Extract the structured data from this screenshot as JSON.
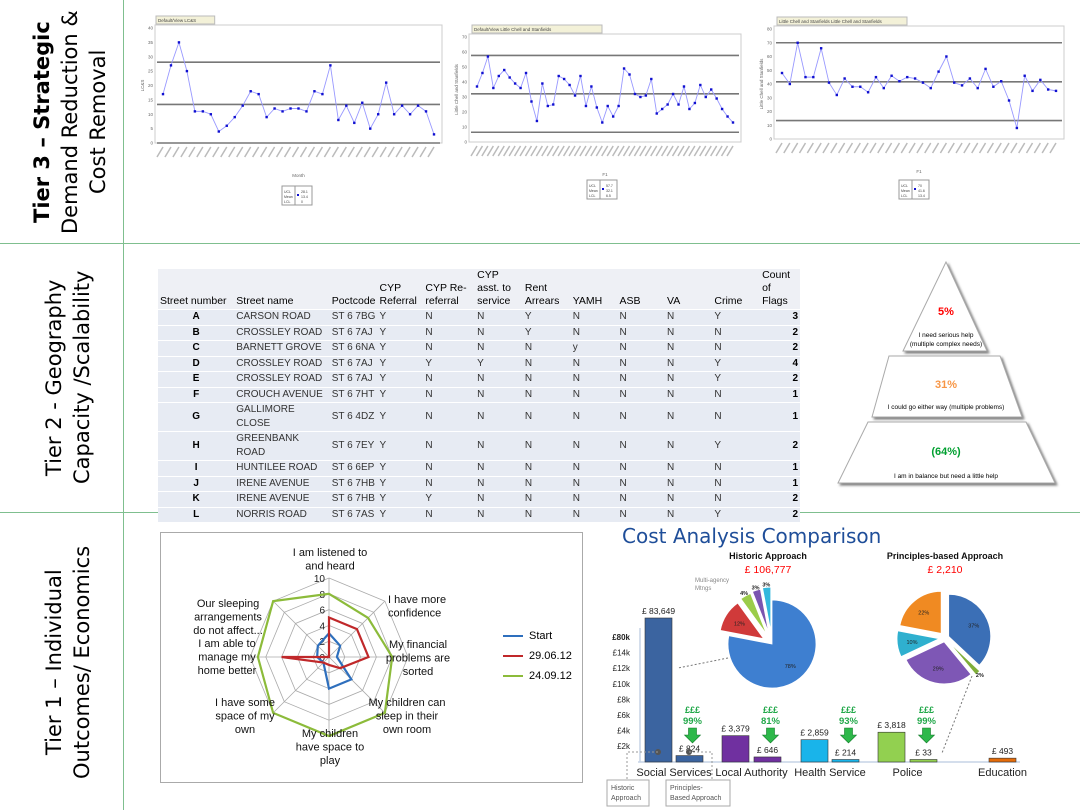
{
  "tiers": [
    {
      "lines": [
        "Tier  3 – Strategic",
        "Demand Reduction &",
        "Cost Removal"
      ]
    },
    {
      "lines": [
        "Tier  2 - Geography",
        "Capacity /Scalability"
      ]
    },
    {
      "lines": [
        "Tier  1 – Individual",
        "Outcomes/ Economics"
      ]
    }
  ],
  "control_charts": [
    {
      "tab": "Default/View LC&S",
      "xlabel": "Month",
      "ylabel": "LC&S",
      "ylim": [
        0,
        40
      ],
      "yticks": [
        0,
        5,
        10,
        15,
        20,
        25,
        30,
        35,
        40
      ],
      "values": [
        17,
        27,
        35,
        25,
        11,
        11,
        10,
        4,
        6,
        9,
        13,
        18,
        17,
        9,
        12,
        11,
        12,
        12,
        11,
        18,
        17,
        27,
        8,
        13,
        7,
        14,
        5,
        10,
        21,
        10,
        13,
        10,
        13,
        11,
        3
      ],
      "ucl": 28.1,
      "mean": 13.4,
      "lcl": 0,
      "legend": {
        "labels": [
          "UCL",
          "Mean",
          "LCL"
        ],
        "values": [
          "28.1",
          "13.4",
          "0"
        ]
      }
    },
    {
      "tab": "Default/View Little Chell and Stanfields",
      "xlabel": "F1",
      "ylabel": "Little Chell and Stanfields",
      "ylim": [
        0,
        70
      ],
      "yticks": [
        0,
        10,
        20,
        30,
        40,
        50,
        60,
        70
      ],
      "values": [
        37,
        46,
        57,
        36,
        44,
        48,
        43,
        39,
        36,
        46,
        27,
        14,
        39,
        24,
        25,
        44,
        42,
        38,
        31,
        44,
        24,
        37,
        23,
        13,
        24,
        17,
        24,
        49,
        45,
        32,
        30,
        31,
        42,
        19,
        22,
        25,
        32,
        25,
        37,
        22,
        26,
        38,
        30,
        35,
        29,
        22,
        17,
        13
      ],
      "ucl": 57.7,
      "mean": 32.1,
      "lcl": 6.5,
      "legend": {
        "labels": [
          "UCL",
          "Mean",
          "LCL"
        ],
        "values": [
          "57.7",
          "32.1",
          "6.5"
        ]
      }
    },
    {
      "tab": "Little Chell and Stanfields Little Chell and Stanfields",
      "xlabel": "F1",
      "ylabel": "Little Chell and Stanfields",
      "ylim": [
        0,
        80
      ],
      "yticks": [
        0,
        10,
        20,
        30,
        40,
        50,
        60,
        70,
        80
      ],
      "values": [
        48,
        40,
        70,
        45,
        45,
        66,
        41,
        32,
        44,
        38,
        38,
        34,
        45,
        37,
        46,
        42,
        45,
        44,
        41,
        37,
        49,
        60,
        41,
        39,
        44,
        37,
        51,
        38,
        42,
        28,
        8,
        46,
        35,
        43,
        36,
        35
      ],
      "ucl": 70,
      "mean": 41.6,
      "lcl": 13.4,
      "legend": {
        "labels": [
          "UCL",
          "Mean",
          "LCL"
        ],
        "values": [
          "70",
          "41.6",
          "13.4"
        ]
      }
    }
  ],
  "flags_table": {
    "headers": [
      "Street number",
      "Street name",
      "Poctcode",
      "CYP Referral",
      "CYP Re-referral",
      "CYP asst. to service",
      "Rent Arrears",
      "YAMH",
      "ASB",
      "VA",
      "Crime",
      "Count of Flags"
    ],
    "rows": [
      [
        "A",
        "CARSON ROAD",
        "ST 6 7BG",
        "Y",
        "N",
        "N",
        "Y",
        "N",
        "N",
        "N",
        "Y",
        "3"
      ],
      [
        "B",
        "CROSSLEY ROAD",
        "ST 6 7AJ",
        "Y",
        "N",
        "N",
        "Y",
        "N",
        "N",
        "N",
        "N",
        "2"
      ],
      [
        "C",
        "BARNETT  GROVE",
        "ST 6 6NA",
        "Y",
        "N",
        "N",
        "N",
        "y",
        "N",
        "N",
        "N",
        "2"
      ],
      [
        "D",
        "CROSSLEY ROAD",
        "ST 6 7AJ",
        "Y",
        "Y",
        "Y",
        "N",
        "N",
        "N",
        "N",
        "Y",
        "4"
      ],
      [
        "E",
        "CROSSLEY ROAD",
        "ST 6 7AJ",
        "Y",
        "N",
        "N",
        "N",
        "N",
        "N",
        "N",
        "Y",
        "2"
      ],
      [
        "F",
        "CROUCH AVENUE",
        "ST 6 7HT",
        "Y",
        "N",
        "N",
        "N",
        "N",
        "N",
        "N",
        "N",
        "1"
      ],
      [
        "G",
        "GALLIMORE CLOSE",
        "ST 6 4DZ",
        "Y",
        "N",
        "N",
        "N",
        "N",
        "N",
        "N",
        "N",
        "1"
      ],
      [
        "H",
        "GREENBANK  ROAD",
        "ST 6 7EY",
        "Y",
        "N",
        "N",
        "N",
        "N",
        "N",
        "N",
        "Y",
        "2"
      ],
      [
        "I",
        "HUNTILEE  ROAD",
        "ST 6 6EP",
        "Y",
        "N",
        "N",
        "N",
        "N",
        "N",
        "N",
        "N",
        "1"
      ],
      [
        "J",
        "IRENE AVENUE",
        "ST 6 7HB",
        "Y",
        "N",
        "N",
        "N",
        "N",
        "N",
        "N",
        "N",
        "1"
      ],
      [
        "K",
        "IRENE AVENUE",
        "ST 6 7HB",
        "Y",
        "Y",
        "N",
        "N",
        "N",
        "N",
        "N",
        "N",
        "2"
      ],
      [
        "L",
        "NORRIS ROAD",
        "ST 6 7AS",
        "Y",
        "N",
        "N",
        "N",
        "N",
        "N",
        "N",
        "Y",
        "2"
      ]
    ]
  },
  "pyramid": [
    {
      "pct": "5%",
      "label": "I  need serious help",
      "label2": "(multiple complex needs)",
      "color": "#ff0000"
    },
    {
      "pct": "31%",
      "label": "I could go either way (multiple problems)",
      "color": "#f79646"
    },
    {
      "pct": "(64%)",
      "label": "I am in balance but need a little help",
      "color": "#00a030"
    }
  ],
  "radar": {
    "axes": [
      [
        "I am listened to",
        "and heard"
      ],
      [
        "I have more",
        "confidence"
      ],
      [
        "My financial",
        "problems are",
        "sorted"
      ],
      [
        "My children can",
        "sleep in their",
        "own room"
      ],
      [
        "My children",
        "have space to",
        "play"
      ],
      [
        "I have some",
        "space of my",
        "own"
      ],
      [
        "I am able to",
        "manage my",
        "home better"
      ],
      [
        "Our sleeping",
        "arrangements",
        "do not affect..."
      ]
    ],
    "rlim": [
      0,
      10
    ],
    "ticks": [
      "0",
      "2",
      "4",
      "6",
      "8",
      "10"
    ],
    "series": [
      {
        "name": "Start",
        "color": "#2e6fbd",
        "values": [
          3,
          2,
          1,
          4,
          4,
          1,
          1.5,
          2
        ]
      },
      {
        "name": "29.06.12",
        "color": "#c0282a",
        "values": [
          5,
          5,
          5,
          2,
          1,
          1,
          6,
          0
        ]
      },
      {
        "name": "24.09.12",
        "color": "#8cbb3a",
        "values": [
          8,
          7,
          8,
          10,
          10,
          10,
          9,
          10
        ]
      }
    ]
  },
  "cost": {
    "title": "Cost Analysis Comparison",
    "yticks": [
      "£80k",
      "£14k",
      "£12k",
      "£10k",
      "£8k",
      "£6k",
      "£4k",
      "£2k"
    ],
    "categories": [
      {
        "name": "Social Services",
        "historic": 83649,
        "historic_label": "£  83,649",
        "principles": 824,
        "principles_label": "£  824",
        "saving_sym": "£££",
        "saving": "99%",
        "color": "#3b64a0"
      },
      {
        "name": "Local Authority",
        "historic": 3379,
        "historic_label": "£  3,379",
        "principles": 646,
        "principles_label": "£  646",
        "saving_sym": "£££",
        "saving": "81%",
        "color": "#7030a0"
      },
      {
        "name": "Health Service",
        "historic": 2859,
        "historic_label": "£  2,859",
        "principles": 214,
        "principles_label": "£  214",
        "saving_sym": "£££",
        "saving": "93%",
        "color": "#19b4ea"
      },
      {
        "name": "Police",
        "historic": 3818,
        "historic_label": "£  3,818",
        "principles": 33,
        "principles_label": "£  33",
        "saving_sym": "£££",
        "saving": "99%",
        "color": "#92d050"
      },
      {
        "name": "Education",
        "historic": null,
        "historic_label": "",
        "principles": 493,
        "principles_label": "£  493",
        "color": "#e46c0a"
      }
    ],
    "historic_pie": {
      "title": "Historic Approach",
      "total": "£ 106,777",
      "callout": "Multi-agency Mtngs",
      "slices": [
        {
          "pct": 78,
          "label": "78%",
          "color": "#3e7fd0"
        },
        {
          "pct": 12,
          "label": "12%",
          "color": "#d03a3a"
        },
        {
          "pct": 4,
          "label": "4%",
          "color": "#9bcc4a"
        },
        {
          "pct": 3,
          "label": "3%",
          "color": "#7a55b0"
        },
        {
          "pct": 3,
          "label": "3%",
          "color": "#33b8dd"
        }
      ]
    },
    "principles_pie": {
      "title": "Principles-based Approach",
      "total": "£ 2,210",
      "slices": [
        {
          "pct": 37,
          "label": "37%",
          "color": "#3b6fb6"
        },
        {
          "pct": 2,
          "label": "2%",
          "color": "#7fae3a"
        },
        {
          "pct": 29,
          "label": "29%",
          "color": "#7e57b5"
        },
        {
          "pct": 10,
          "label": "10%",
          "color": "#2fb0cf"
        },
        {
          "pct": 22,
          "label": "22%",
          "color": "#f08a22"
        }
      ]
    },
    "legend": {
      "historic": [
        "Historic",
        "Approach"
      ],
      "principles": [
        "Principles-",
        "Based Approach"
      ]
    },
    "saving_color": "#22a84a",
    "total_color": "#ff0000"
  }
}
